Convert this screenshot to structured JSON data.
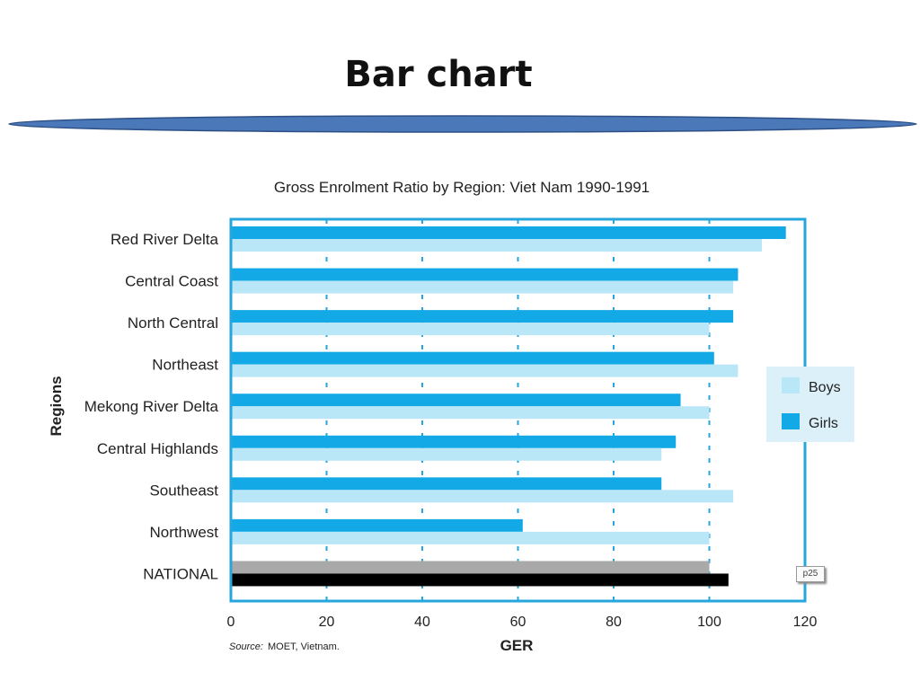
{
  "slide": {
    "title": "Bar chart",
    "page_tag": "p25"
  },
  "colors": {
    "title_bar": "#4a78b8",
    "frame": "#25a6dc",
    "boys": "#b9e7f7",
    "girls": "#13a9e6",
    "national_boys": "#a9a9a9",
    "national_girls": "#000000",
    "grid": "#25a6dc",
    "legend_bg": "#dcf0fa"
  },
  "chart_data": {
    "type": "bar",
    "orientation": "horizontal",
    "title": "Gross Enrolment Ratio by Region: Viet Nam 1990-1991",
    "xlabel": "GER",
    "ylabel": "Regions",
    "xlim": [
      0,
      120
    ],
    "xticks": [
      0,
      20,
      40,
      60,
      80,
      100,
      120
    ],
    "grid": true,
    "legend_position": "right",
    "categories": [
      "Red  River Delta",
      "Central Coast",
      "North Central",
      "Northeast",
      "Mekong River Delta",
      "Central Highlands",
      "Southeast",
      "Northwest",
      "NATIONAL"
    ],
    "series": [
      {
        "name": "Boys",
        "values": [
          111,
          105,
          100,
          106,
          100,
          90,
          105,
          100,
          100
        ]
      },
      {
        "name": "Girls",
        "values": [
          116,
          106,
          105,
          101,
          94,
          93,
          90,
          61,
          104
        ]
      }
    ],
    "source": "MOET, Vietnam.",
    "source_label": "Source:"
  }
}
